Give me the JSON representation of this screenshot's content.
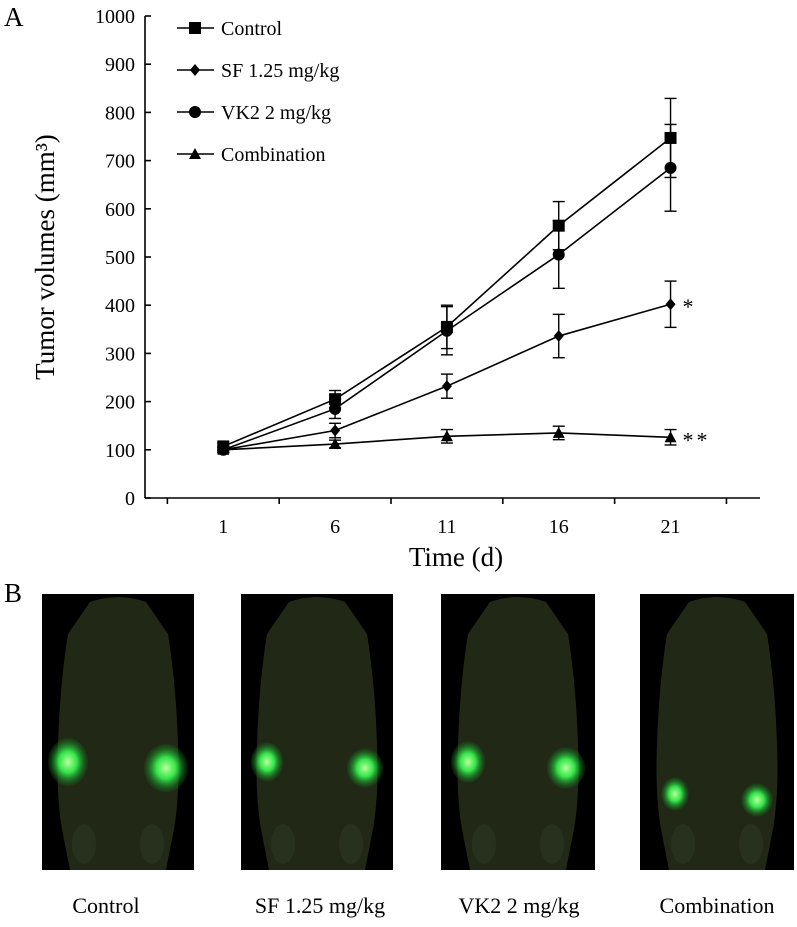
{
  "panel_labels": {
    "a": "A",
    "b": "B"
  },
  "chart_data": {
    "type": "line",
    "title": "",
    "xlabel": "Time (d)",
    "ylabel": "Tumor volumes (mm³)",
    "x": [
      1,
      6,
      11,
      16,
      21
    ],
    "xlim": [
      -2.5,
      25
    ],
    "ylim": [
      0,
      1000
    ],
    "yticks": [
      0,
      100,
      200,
      300,
      400,
      500,
      600,
      700,
      800,
      900,
      1000
    ],
    "legend_position": "top-left",
    "grid": false,
    "series": [
      {
        "name": "Control",
        "marker": "square",
        "values": [
          107,
          205,
          355,
          565,
          747
        ],
        "errors": [
          8,
          18,
          45,
          50,
          82
        ]
      },
      {
        "name": "SF 1.25 mg/kg",
        "marker": "diamond",
        "values": [
          100,
          140,
          232,
          336,
          402
        ],
        "errors": [
          6,
          15,
          25,
          45,
          48
        ],
        "annotation": "*"
      },
      {
        "name": "VK2 2 mg/kg",
        "marker": "circle",
        "values": [
          100,
          185,
          347,
          505,
          685
        ],
        "errors": [
          6,
          20,
          50,
          70,
          90
        ]
      },
      {
        "name": "Combination",
        "marker": "triangle",
        "values": [
          100,
          112,
          128,
          135,
          126
        ],
        "errors": [
          6,
          8,
          14,
          14,
          16
        ],
        "annotation": "**"
      }
    ]
  },
  "images": {
    "panels": [
      {
        "caption": "Control",
        "tumor_level": 1.0
      },
      {
        "caption": "SF 1.25 mg/kg",
        "tumor_level": 0.62
      },
      {
        "caption": "VK2 2 mg/kg",
        "tumor_level": 0.72
      },
      {
        "caption": "Combination",
        "tumor_level": 0.38
      }
    ]
  }
}
